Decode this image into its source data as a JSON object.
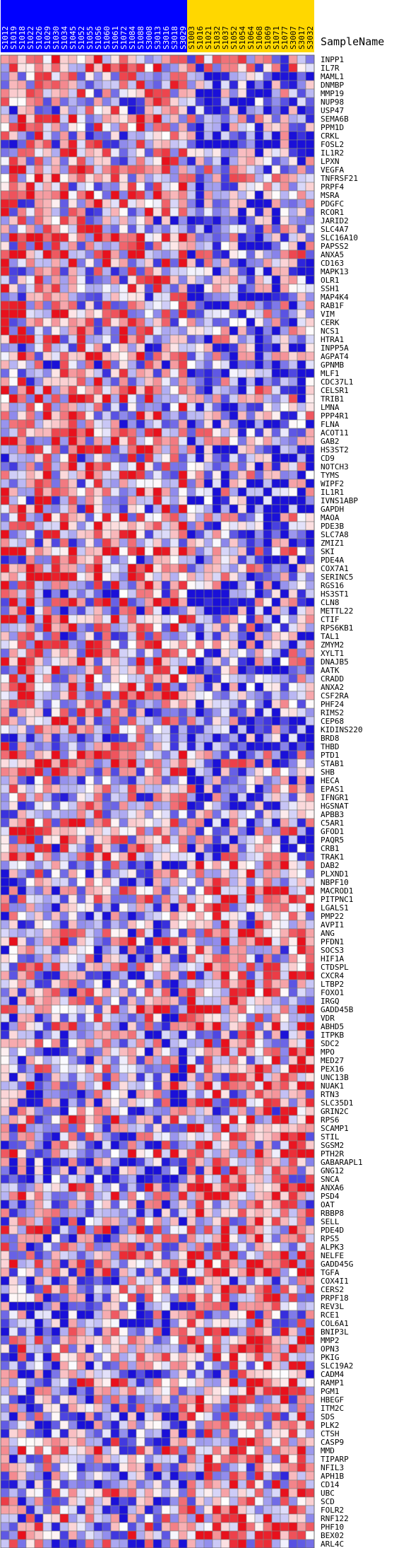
{
  "chart_data": {
    "type": "heatmap",
    "title": "",
    "row_header": "SampleName",
    "columns": [
      {
        "name": "S1012",
        "group": "a"
      },
      {
        "name": "S1019",
        "group": "a"
      },
      {
        "name": "S1018",
        "group": "a"
      },
      {
        "name": "S1022",
        "group": "a"
      },
      {
        "name": "S1026",
        "group": "a"
      },
      {
        "name": "S1029",
        "group": "a"
      },
      {
        "name": "S1030",
        "group": "a"
      },
      {
        "name": "S1034",
        "group": "a"
      },
      {
        "name": "S1045",
        "group": "a"
      },
      {
        "name": "S1052",
        "group": "a"
      },
      {
        "name": "S1055",
        "group": "a"
      },
      {
        "name": "S1056",
        "group": "a"
      },
      {
        "name": "S1060",
        "group": "a"
      },
      {
        "name": "S1061",
        "group": "a"
      },
      {
        "name": "S1072",
        "group": "a"
      },
      {
        "name": "S1084",
        "group": "a"
      },
      {
        "name": "S1088",
        "group": "a"
      },
      {
        "name": "S3008",
        "group": "a"
      },
      {
        "name": "S3013",
        "group": "a"
      },
      {
        "name": "S3016",
        "group": "a"
      },
      {
        "name": "S3018",
        "group": "a"
      },
      {
        "name": "S3029",
        "group": "a"
      },
      {
        "name": "S1003",
        "group": "b"
      },
      {
        "name": "S1016",
        "group": "b"
      },
      {
        "name": "S1021",
        "group": "b"
      },
      {
        "name": "S1032",
        "group": "b"
      },
      {
        "name": "S1037",
        "group": "b"
      },
      {
        "name": "S1052",
        "group": "b"
      },
      {
        "name": "S1054",
        "group": "b"
      },
      {
        "name": "S1064",
        "group": "b"
      },
      {
        "name": "S1068",
        "group": "b"
      },
      {
        "name": "S1069",
        "group": "b"
      },
      {
        "name": "S1071",
        "group": "b"
      },
      {
        "name": "S1077",
        "group": "b"
      },
      {
        "name": "S3007",
        "group": "b"
      },
      {
        "name": "S3017",
        "group": "b"
      },
      {
        "name": "S3032",
        "group": "b"
      }
    ],
    "group_colors": {
      "a": "#0000ff",
      "b": "#ffd700"
    },
    "rows": [
      "INPP1",
      "IL7R",
      "MAML1",
      "DNMBP",
      "MMP19",
      "NUP98",
      "USP47",
      "SEMA6B",
      "PPM1D",
      "CRKL",
      "FOSL2",
      "IL1R2",
      "LPXN",
      "VEGFA",
      "TNFRSF21",
      "PRPF4",
      "MSRA",
      "PDGFC",
      "RCOR1",
      "JARID2",
      "SLC4A7",
      "SLC16A10",
      "PAPSS2",
      "ANXA5",
      "CD163",
      "MAPK13",
      "OLR1",
      "SSH1",
      "MAP4K4",
      "RAB1F",
      "VIM",
      "CERK",
      "NCS1",
      "HTRA1",
      "INPP5A",
      "AGPAT4",
      "GPNMB",
      "MLF1",
      "CDC37L1",
      "CELSR1",
      "TRIB1",
      "LMNA",
      "PPP4R1",
      "FLNA",
      "ACOT11",
      "GAB2",
      "HS3ST2",
      "CD9",
      "NOTCH3",
      "TYMS",
      "WIPF2",
      "IL1R1",
      "IVNS1ABP",
      "GAPDH",
      "MAOA",
      "PDE3B",
      "SLC7A8",
      "ZMIZ1",
      "SKI",
      "PDE4A",
      "COX7A1",
      "SERINC5",
      "RGS16",
      "HS3ST1",
      "CLN8",
      "METTL22",
      "CTIF",
      "RPS6KB1",
      "TAL1",
      "ZMYM2",
      "XYLT1",
      "DNAJB5",
      "AATK",
      "CRADD",
      "ANXA2",
      "CSF2RA",
      "PHF24",
      "RIMS2",
      "CEP68",
      "KIDINS220",
      "BRD8",
      "THBD",
      "PTD1",
      "STAB1",
      "SHB",
      "HECA",
      "EPAS1",
      "IFNGR1",
      "HGSNAT",
      "APBB3",
      "C5AR1",
      "GFOD1",
      "PAQR5",
      "CRB1",
      "TRAK1",
      "DAB2",
      "PLXND1",
      "NBPF10",
      "MACROD1",
      "PITPNC1",
      "LGALS1",
      "PMP22",
      "AVPI1",
      "ANG",
      "PFDN1",
      "SOCS3",
      "HIF1A",
      "CTDSPL",
      "CXCR4",
      "LTBP2",
      "FOXO1",
      "IRGQ",
      "GADD45B",
      "VDR",
      "ABHD5",
      "ITPKB",
      "SDC2",
      "MPO",
      "MED27",
      "PEX16",
      "UNC13B",
      "NUAK1",
      "RTN3",
      "SLC35D1",
      "GRIN2C",
      "RPS6",
      "SCAMP1",
      "STIL",
      "SGSM2",
      "PTH2R",
      "GABARAPL1",
      "GNG12",
      "SNCA",
      "ANXA6",
      "PSD4",
      "OAT",
      "RBBP8",
      "SELL",
      "PDE4D",
      "RPS5",
      "ALPK3",
      "NELFE",
      "GADD45G",
      "TGFA",
      "COX4I1",
      "CERS2",
      "PRPF18",
      "REV3L",
      "RCE1",
      "COL6A1",
      "BNIP3L",
      "MMP2",
      "OPN3",
      "PKIG",
      "SLC19A2",
      "CADM4",
      "RAMP1",
      "PGM1",
      "HBEGF",
      "ITM2C",
      "SDS",
      "PLK2",
      "CTSH",
      "CASP9",
      "MMD",
      "TIPARP",
      "NFIL3",
      "APH1B",
      "CD14",
      "UBC",
      "SCD",
      "FOLR2",
      "RNF122",
      "PHF10",
      "BEX02",
      "ARL4C"
    ],
    "value_scale": "row-normalized expression, -1 (low, blue) to +1 (high, red)",
    "color_scale": {
      "low": "#1a10d8",
      "mid": "#ffffff",
      "high": "#e8101c"
    }
  }
}
